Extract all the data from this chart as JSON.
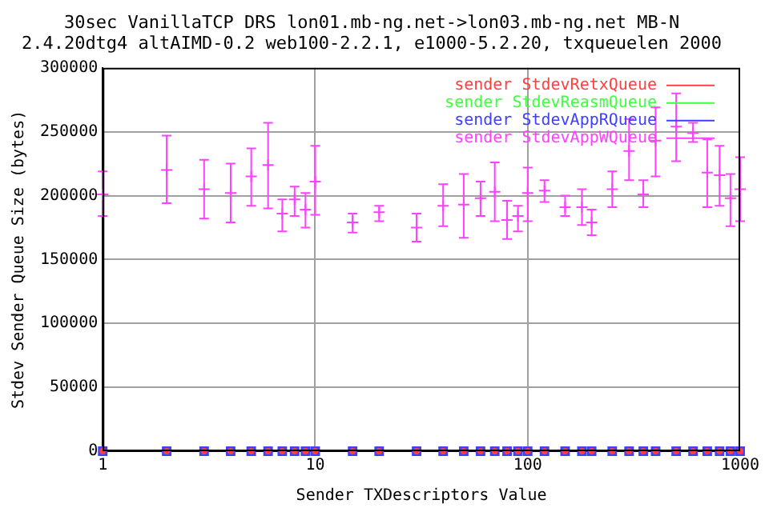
{
  "chart_data": {
    "type": "scatter",
    "title": "30sec VanillaTCP DRS lon01.mb-ng.net->lon03.mb-ng.net MB-N",
    "subtitle": "2.4.20dtg4 altAIMD-0.2 web100-2.2.1, e1000-5.2.20, txqueuelen 2000",
    "xlabel": "Sender TXDescriptors Value",
    "ylabel": "Stdev Sender Queue Size (bytes)",
    "x": [
      1,
      2,
      3,
      4,
      5,
      6,
      7,
      8,
      9,
      10,
      15,
      20,
      30,
      40,
      50,
      60,
      70,
      80,
      90,
      100,
      120,
      150,
      180,
      200,
      250,
      300,
      350,
      400,
      500,
      600,
      700,
      800,
      900,
      1000
    ],
    "log": "x",
    "xlim": [
      1,
      1000
    ],
    "xticks": [
      1,
      10,
      100,
      1000
    ],
    "ylim": [
      0,
      300000
    ],
    "yticks": [
      0,
      50000,
      100000,
      150000,
      200000,
      250000,
      300000
    ],
    "grid": true,
    "legend": "top right",
    "series": [
      {
        "name": "sender StdevRetxQueue",
        "color": "#ff4040",
        "marker": "circle",
        "values": [
          0,
          0,
          0,
          0,
          0,
          0,
          0,
          0,
          0,
          0,
          0,
          0,
          0,
          0,
          0,
          0,
          0,
          0,
          0,
          0,
          0,
          0,
          0,
          0,
          0,
          0,
          0,
          0,
          0,
          0,
          0,
          0,
          0,
          0
        ]
      },
      {
        "name": "sender StdevReasmQueue",
        "color": "#40ff40",
        "marker": "cross",
        "values": [
          null,
          null,
          null,
          null,
          null,
          null,
          null,
          null,
          null,
          null,
          null,
          null,
          null,
          null,
          null,
          null,
          null,
          null,
          null,
          null,
          null,
          null,
          null,
          null,
          null,
          null,
          null,
          null,
          null,
          null,
          null,
          null,
          null,
          null
        ]
      },
      {
        "name": "sender StdevAppRQueue",
        "color": "#4040ff",
        "marker": "square",
        "values": [
          0,
          0,
          0,
          0,
          0,
          0,
          0,
          0,
          0,
          0,
          0,
          0,
          0,
          0,
          0,
          0,
          0,
          0,
          0,
          0,
          0,
          0,
          0,
          0,
          0,
          0,
          0,
          0,
          0,
          0,
          0,
          0,
          0,
          0
        ]
      },
      {
        "name": "sender StdevAppWQueue",
        "color": "#ff40ff",
        "marker": "cross",
        "values": [
          201000,
          220000,
          205000,
          202000,
          215000,
          224000,
          186000,
          197000,
          189000,
          211000,
          179000,
          187000,
          175000,
          192000,
          193000,
          198000,
          203000,
          181000,
          184000,
          202000,
          204000,
          191000,
          191000,
          179000,
          205000,
          235000,
          201000,
          243000,
          254000,
          249000,
          218000,
          216000,
          198000,
          205000
        ],
        "errors": [
          [
            184000,
            219000
          ],
          [
            194000,
            247000
          ],
          [
            182000,
            228000
          ],
          [
            179000,
            225000
          ],
          [
            192000,
            237000
          ],
          [
            190000,
            257000
          ],
          [
            172000,
            197000
          ],
          [
            184000,
            207000
          ],
          [
            175000,
            202000
          ],
          [
            185000,
            239000
          ],
          [
            171000,
            186000
          ],
          [
            180000,
            192000
          ],
          [
            164000,
            186000
          ],
          [
            176000,
            209000
          ],
          [
            167000,
            217000
          ],
          [
            184000,
            211000
          ],
          [
            180000,
            226000
          ],
          [
            166000,
            196000
          ],
          [
            172000,
            192000
          ],
          [
            180000,
            222000
          ],
          [
            195000,
            212000
          ],
          [
            184000,
            200000
          ],
          [
            177000,
            205000
          ],
          [
            169000,
            189000
          ],
          [
            191000,
            219000
          ],
          [
            212000,
            260000
          ],
          [
            191000,
            212000
          ],
          [
            215000,
            269000
          ],
          [
            227000,
            280000
          ],
          [
            242000,
            257000
          ],
          [
            191000,
            244000
          ],
          [
            192000,
            239000
          ],
          [
            176000,
            217000
          ],
          [
            180000,
            230000
          ]
        ]
      }
    ]
  }
}
